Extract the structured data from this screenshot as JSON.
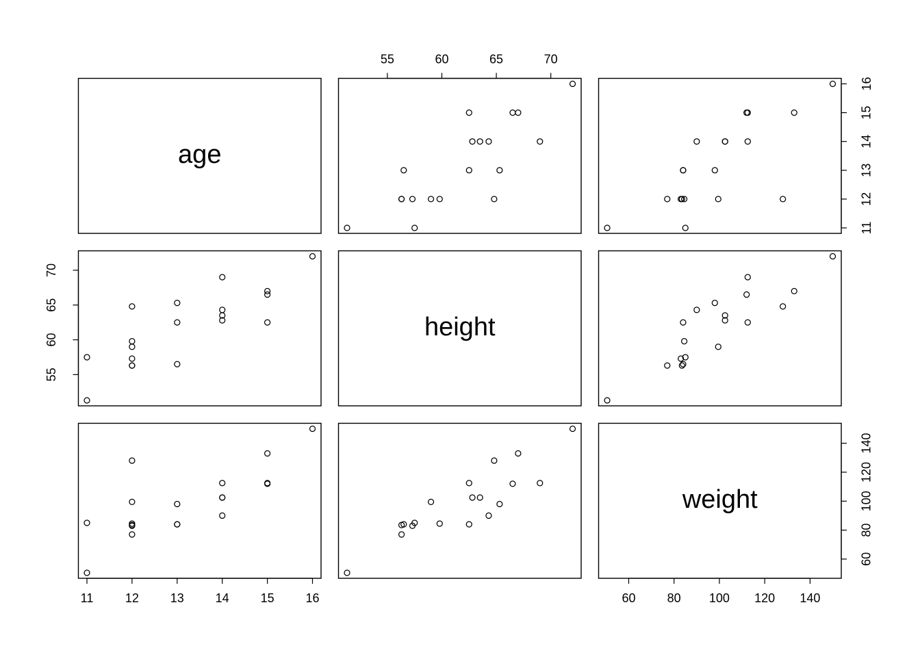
{
  "chart_data": {
    "type": "scatter",
    "title": "",
    "variables": [
      "age",
      "height",
      "weight"
    ],
    "colors": {
      "background": "#ffffff",
      "foreground": "#000000"
    },
    "ranges": {
      "age": [
        11,
        16
      ],
      "height": [
        51.3,
        72
      ],
      "weight": [
        50.5,
        150
      ]
    },
    "axis_ticks": {
      "age": [
        11,
        12,
        13,
        14,
        15,
        16
      ],
      "height": [
        55,
        60,
        65,
        70
      ],
      "weight": [
        60,
        80,
        100,
        120,
        140
      ]
    },
    "axis_tick_labels": {
      "age": [
        "11",
        "12",
        "13",
        "14",
        "15",
        "16"
      ],
      "height": [
        "55",
        "60",
        "65",
        "70"
      ],
      "weight": [
        "60",
        "80",
        "100",
        "120",
        "140"
      ]
    },
    "observations": [
      {
        "age": 11,
        "height": 51.3,
        "weight": 50.5
      },
      {
        "age": 11,
        "height": 57.5,
        "weight": 85.0
      },
      {
        "age": 12,
        "height": 56.3,
        "weight": 77.0
      },
      {
        "age": 12,
        "height": 57.3,
        "weight": 83.0
      },
      {
        "age": 12,
        "height": 59.0,
        "weight": 99.5
      },
      {
        "age": 12,
        "height": 59.8,
        "weight": 84.5
      },
      {
        "age": 12,
        "height": 64.8,
        "weight": 128.0
      },
      {
        "age": 12,
        "height": 56.3,
        "weight": 83.5
      },
      {
        "age": 13,
        "height": 56.5,
        "weight": 84.0
      },
      {
        "age": 13,
        "height": 62.5,
        "weight": 84.0
      },
      {
        "age": 13,
        "height": 65.3,
        "weight": 98.0
      },
      {
        "age": 14,
        "height": 62.8,
        "weight": 102.5
      },
      {
        "age": 14,
        "height": 63.5,
        "weight": 102.5
      },
      {
        "age": 14,
        "height": 64.3,
        "weight": 90.0
      },
      {
        "age": 14,
        "height": 69.0,
        "weight": 112.5
      },
      {
        "age": 15,
        "height": 62.5,
        "weight": 112.5
      },
      {
        "age": 15,
        "height": 66.5,
        "weight": 112.0
      },
      {
        "age": 15,
        "height": 67.0,
        "weight": 133.0
      },
      {
        "age": 16,
        "height": 72.0,
        "weight": 150.0
      }
    ]
  }
}
